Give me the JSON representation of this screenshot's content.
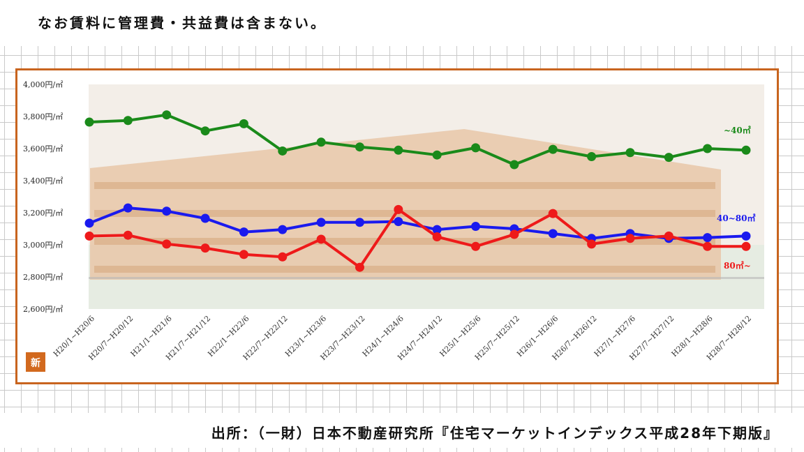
{
  "note_text": "なお賃料に管理費・共益費は含まない。",
  "source_text": "出所：（一財）日本不動産研究所『住宅マーケットインデックス平成28年下期版』",
  "badge_text": "新",
  "chart_data": {
    "type": "line",
    "title": "",
    "xlabel": "",
    "ylabel": "",
    "ylim": [
      2600,
      4000
    ],
    "y_ticks": [
      4000,
      3800,
      3600,
      3400,
      3200,
      3000,
      2800,
      2600
    ],
    "y_tick_labels": [
      "4,000円/㎡",
      "3,800円/㎡",
      "3,600円/㎡",
      "3,400円/㎡",
      "3,200円/㎡",
      "3,000円/㎡",
      "2,800円/㎡",
      "2,600円/㎡"
    ],
    "categories": [
      "H20/1~H20/6",
      "H20/7~H20/12",
      "H21/1~H21/6",
      "H21/7~H21/12",
      "H22/1~H22/6",
      "H22/7~H22/12",
      "H23/1~H23/6",
      "H23/7~H23/12",
      "H24/1~H24/6",
      "H24/7~H24/12",
      "H25/1~H25/6",
      "H25/7~H25/12",
      "H26/1~H26/6",
      "H26/7~H26/12",
      "H27/1~H27/6",
      "H27/7~H27/12",
      "H28/1~H28/6",
      "H28/7~H28/12"
    ],
    "series": [
      {
        "name": "~40㎡",
        "color": "#1a8a1a",
        "values": [
          3765,
          3775,
          3810,
          3710,
          3755,
          3585,
          3640,
          3610,
          3590,
          3560,
          3605,
          3500,
          3595,
          3550,
          3575,
          3545,
          3600,
          3590
        ]
      },
      {
        "name": "40~80㎡",
        "color": "#1a1aee",
        "values": [
          3135,
          3230,
          3210,
          3165,
          3080,
          3095,
          3140,
          3140,
          3145,
          3095,
          3115,
          3100,
          3070,
          3040,
          3070,
          3040,
          3045,
          3055
        ]
      },
      {
        "name": "80㎡~",
        "color": "#ee1a1a",
        "values": [
          3055,
          3060,
          3005,
          2980,
          2940,
          2925,
          3035,
          2860,
          3220,
          3050,
          2990,
          3065,
          3195,
          3005,
          3040,
          3055,
          2990,
          2990
        ]
      }
    ],
    "grid": false,
    "legend": "right, inline labels"
  }
}
